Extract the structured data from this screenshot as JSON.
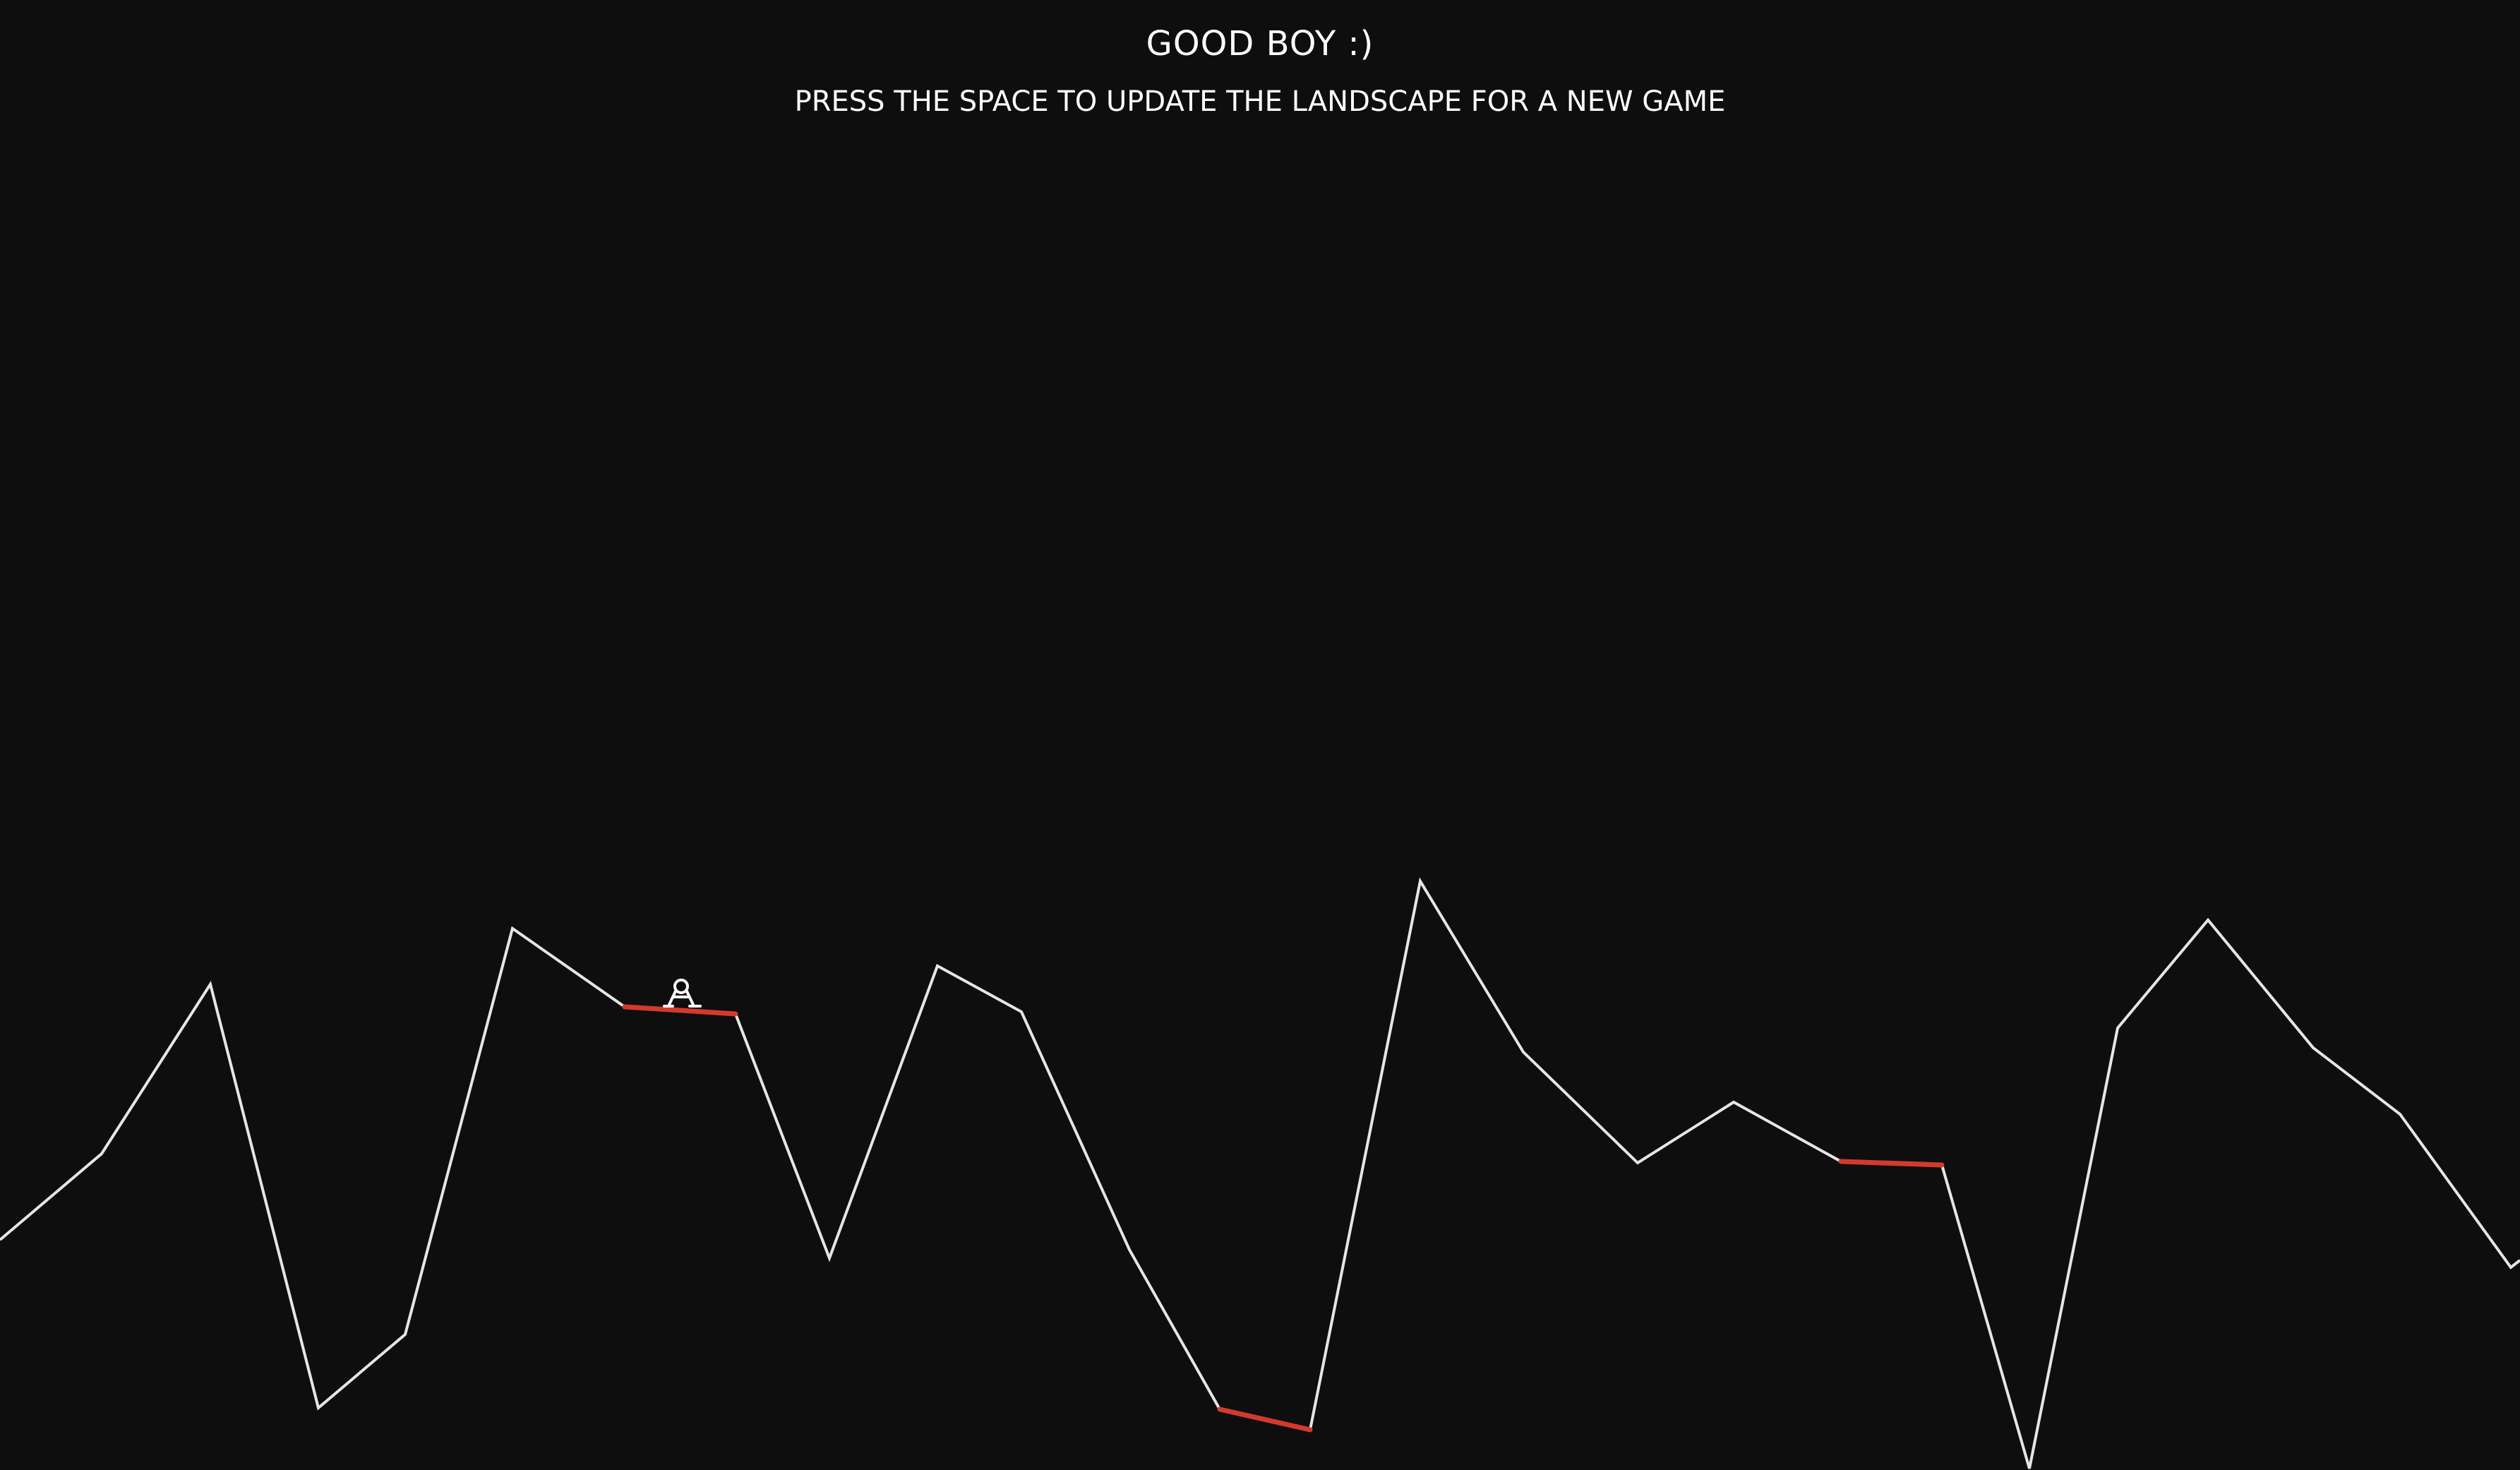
{
  "game": {
    "title": "GOOD BOY :)",
    "hint": "PRESS THE SPACE TO UPDATE THE LANDSCAPE FOR A NEW GAME"
  },
  "colors": {
    "background": "#0e0e0e",
    "terrain": "#e6e6e6",
    "landing_pad": "#d33a2c",
    "text": "#ffffff"
  },
  "icons": {
    "lander": "lunar-lander-icon"
  }
}
